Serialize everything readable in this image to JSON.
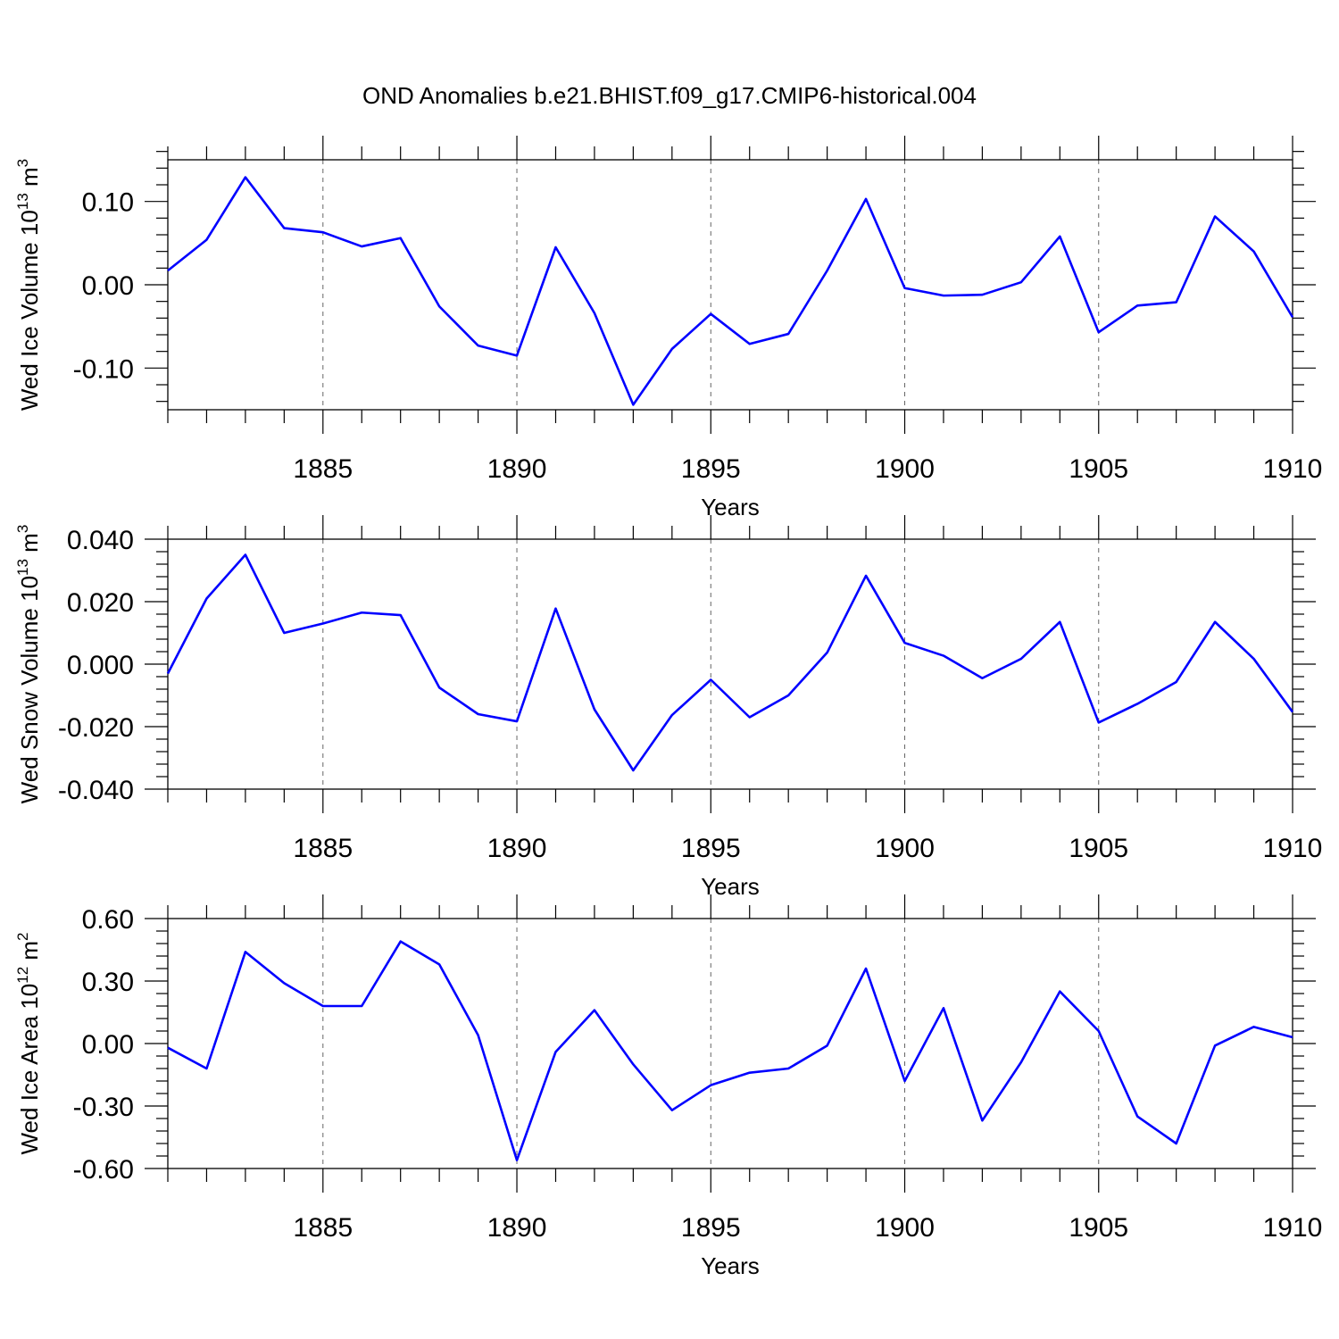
{
  "title": "OND Anomalies b.e21.BHIST.f09_g17.CMIP6-historical.004",
  "colors": {
    "series": "#0000ff",
    "axes": "#000000",
    "grid": "#666666"
  },
  "chart_data": [
    {
      "type": "line",
      "ylabel": "Wed Ice Volume 10",
      "ylabel_exp": "13",
      "ylabel_unit": " m",
      "ylabel_unit_exp": "3",
      "xlabel": "Years",
      "xlim": [
        1881,
        1910
      ],
      "ylim": [
        -0.15,
        0.15
      ],
      "xticks": [
        1885,
        1890,
        1895,
        1900,
        1905,
        1910
      ],
      "xtick_labels": [
        "1885",
        "1890",
        "1895",
        "1900",
        "1905",
        "1910"
      ],
      "yticks": [
        -0.1,
        0.0,
        0.1
      ],
      "ytick_labels": [
        "-0.10",
        "0.00",
        "0.10"
      ],
      "grid": "dashed vertical at major x ticks",
      "x": [
        1881,
        1882,
        1883,
        1884,
        1885,
        1886,
        1887,
        1888,
        1889,
        1890,
        1891,
        1892,
        1893,
        1894,
        1895,
        1896,
        1897,
        1898,
        1899,
        1900,
        1901,
        1902,
        1903,
        1904,
        1905,
        1906,
        1907,
        1908,
        1909,
        1910
      ],
      "series": [
        {
          "values": [
            0.017,
            0.054,
            0.129,
            0.068,
            0.063,
            0.046,
            0.056,
            -0.026,
            -0.073,
            -0.085,
            0.045,
            -0.034,
            -0.144,
            -0.077,
            -0.035,
            -0.071,
            -0.059,
            0.017,
            0.103,
            -0.004,
            -0.013,
            -0.012,
            0.003,
            0.058,
            -0.057,
            -0.025,
            -0.021,
            0.082,
            0.04,
            -0.039
          ]
        }
      ]
    },
    {
      "type": "line",
      "ylabel": "Wed Snow Volume 10",
      "ylabel_exp": "13",
      "ylabel_unit": " m",
      "ylabel_unit_exp": "3",
      "xlabel": "Years",
      "xlim": [
        1881,
        1910
      ],
      "ylim": [
        -0.04,
        0.04
      ],
      "xticks": [
        1885,
        1890,
        1895,
        1900,
        1905,
        1910
      ],
      "xtick_labels": [
        "1885",
        "1890",
        "1895",
        "1900",
        "1905",
        "1910"
      ],
      "yticks": [
        -0.04,
        -0.02,
        0.0,
        0.02,
        0.04
      ],
      "ytick_labels": [
        "-0.040",
        "-0.020",
        "0.000",
        "0.020",
        "0.040"
      ],
      "grid": "dashed vertical at major x ticks",
      "x": [
        1881,
        1882,
        1883,
        1884,
        1885,
        1886,
        1887,
        1888,
        1889,
        1890,
        1891,
        1892,
        1893,
        1894,
        1895,
        1896,
        1897,
        1898,
        1899,
        1900,
        1901,
        1902,
        1903,
        1904,
        1905,
        1906,
        1907,
        1908,
        1909,
        1910
      ],
      "series": [
        {
          "values": [
            -0.003,
            0.021,
            0.035,
            0.01,
            0.013,
            0.0165,
            0.0157,
            -0.0075,
            -0.016,
            -0.0183,
            0.0178,
            -0.0145,
            -0.034,
            -0.0163,
            -0.005,
            -0.017,
            -0.01,
            0.0037,
            0.0283,
            0.0068,
            0.0027,
            -0.0045,
            0.0017,
            0.0135,
            -0.0187,
            -0.0127,
            -0.0057,
            0.0135,
            0.0017,
            -0.0153
          ]
        }
      ]
    },
    {
      "type": "line",
      "ylabel": "Wed Ice Area 10",
      "ylabel_exp": "12",
      "ylabel_unit": " m",
      "ylabel_unit_exp": "2",
      "xlabel": "Years",
      "xlim": [
        1881,
        1910
      ],
      "ylim": [
        -0.6,
        0.6
      ],
      "xticks": [
        1885,
        1890,
        1895,
        1900,
        1905,
        1910
      ],
      "xtick_labels": [
        "1885",
        "1890",
        "1895",
        "1900",
        "1905",
        "1910"
      ],
      "yticks": [
        -0.6,
        -0.3,
        0.0,
        0.3,
        0.6
      ],
      "ytick_labels": [
        "-0.60",
        "-0.30",
        "0.00",
        "0.30",
        "0.60"
      ],
      "grid": "dashed vertical at major x ticks",
      "x": [
        1881,
        1882,
        1883,
        1884,
        1885,
        1886,
        1887,
        1888,
        1889,
        1890,
        1891,
        1892,
        1893,
        1894,
        1895,
        1896,
        1897,
        1898,
        1899,
        1900,
        1901,
        1902,
        1903,
        1904,
        1905,
        1906,
        1907,
        1908,
        1909,
        1910
      ],
      "series": [
        {
          "values": [
            -0.02,
            -0.12,
            0.44,
            0.29,
            0.18,
            0.18,
            0.49,
            0.38,
            0.04,
            -0.56,
            -0.04,
            0.16,
            -0.1,
            -0.32,
            -0.2,
            -0.14,
            -0.12,
            -0.01,
            0.36,
            -0.18,
            0.17,
            -0.37,
            -0.09,
            0.25,
            0.06,
            -0.35,
            -0.48,
            -0.01,
            0.08,
            0.03
          ]
        }
      ]
    }
  ]
}
